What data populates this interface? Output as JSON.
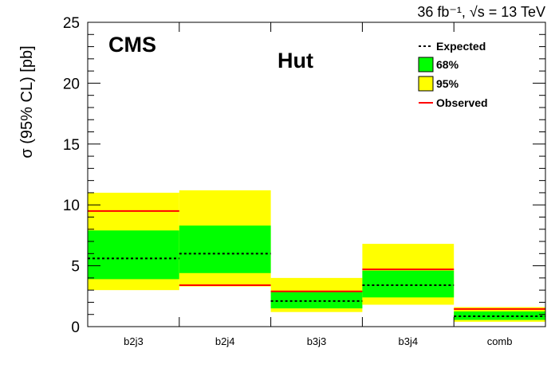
{
  "chart_data": {
    "type": "bar",
    "title": "",
    "header_right": "36 fb⁻¹,  √s = 13 TeV",
    "experiment_label": "CMS",
    "channel_label": "Hut",
    "ylabel": "σ (95% CL) [pb]",
    "xlabel": "",
    "ylim": [
      0,
      25
    ],
    "yticks": [
      0,
      5,
      10,
      15,
      20,
      25
    ],
    "categories": [
      "b2j3",
      "b2j4",
      "b3j3",
      "b3j4",
      "comb"
    ],
    "series": [
      {
        "name": "Expected",
        "values": [
          5.6,
          6.0,
          2.1,
          3.4,
          0.85
        ]
      },
      {
        "name": "68%",
        "low": [
          3.9,
          4.4,
          1.5,
          2.4,
          0.55
        ],
        "high": [
          7.9,
          8.3,
          2.9,
          4.6,
          1.25
        ]
      },
      {
        "name": "95%",
        "low": [
          3.0,
          3.3,
          1.2,
          1.8,
          0.4
        ],
        "high": [
          11.0,
          11.2,
          4.0,
          6.8,
          1.6
        ]
      },
      {
        "name": "Observed",
        "values": [
          9.5,
          3.4,
          2.9,
          4.7,
          1.45
        ]
      }
    ],
    "legend_location": "top-right",
    "colors": {
      "band68": "#00ff00",
      "band95": "#ffff00",
      "expected": "#000000",
      "observed": "#ff0000"
    }
  }
}
